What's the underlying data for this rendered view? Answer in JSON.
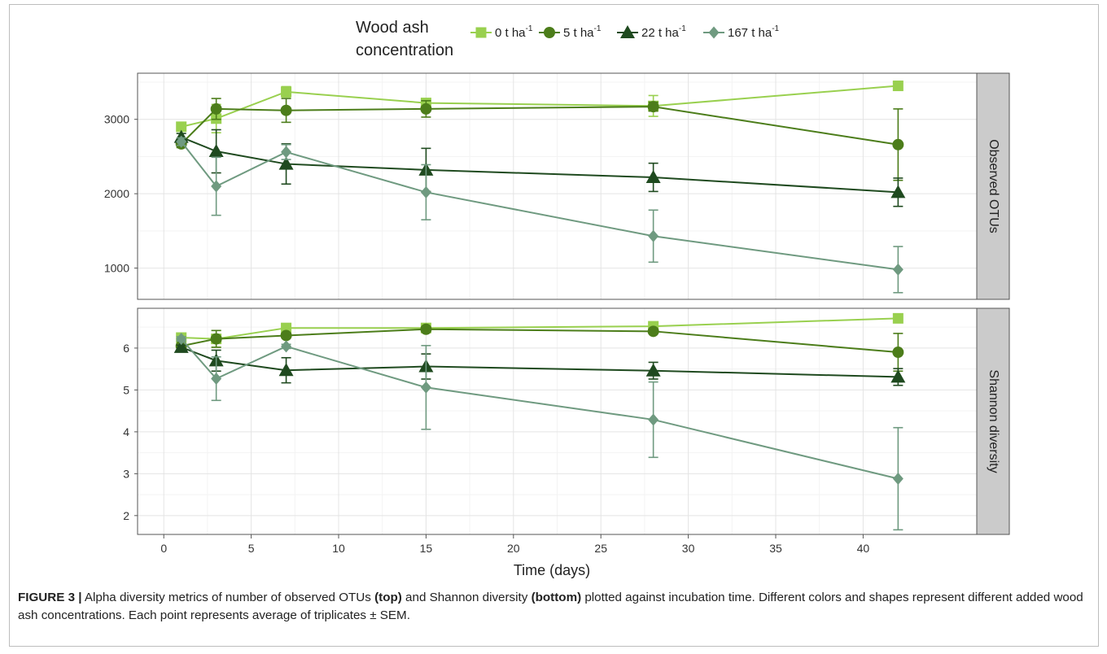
{
  "legend": {
    "title_line1": "Wood ash",
    "title_line2": "concentration",
    "unit_text": "t ha",
    "unit_sup": "-1"
  },
  "caption": {
    "label": "FIGURE 3 |",
    "text_1": " Alpha diversity metrics of number of observed OTUs ",
    "bold_1": "(top)",
    "text_2": " and Shannon diversity ",
    "bold_2": "(bottom)",
    "text_3": " plotted against incubation time. Different colors and shapes represent different added wood ash concentrations. Each point represents average of triplicates ± SEM."
  },
  "chart_data": {
    "type": "line",
    "xlabel": "Time (days)",
    "x": [
      1,
      3,
      7,
      15,
      28,
      42
    ],
    "xlim": [
      -1.5,
      46.5
    ],
    "xticks": [
      0,
      5,
      10,
      15,
      20,
      25,
      30,
      35,
      40
    ],
    "grid": true,
    "legend_position": "top",
    "series_styles": [
      {
        "name": "0 t ha-1",
        "label": "0",
        "color": "#99d04f",
        "shape": "square"
      },
      {
        "name": "5 t ha-1",
        "label": "5",
        "color": "#4c7d1a",
        "shape": "circle"
      },
      {
        "name": "22 t ha-1",
        "label": "22",
        "color": "#1f4a1f",
        "shape": "triangle"
      },
      {
        "name": "167 t ha-1",
        "label": "167",
        "color": "#6f9a80",
        "shape": "diamond"
      }
    ],
    "panels": [
      {
        "strip": "Observed OTUs",
        "ylim": [
          580,
          3620
        ],
        "yticks": [
          1000,
          2000,
          3000
        ],
        "series": [
          {
            "name": "0 t ha-1",
            "values": [
              2900,
              3010,
              3370,
              3220,
              3180,
              3450
            ],
            "err": [
              50,
              190,
              70,
              40,
              140,
              0
            ]
          },
          {
            "name": "5 t ha-1",
            "values": [
              2670,
              3140,
              3120,
              3140,
              3170,
              2660
            ],
            "err": [
              50,
              140,
              160,
              110,
              60,
              480
            ]
          },
          {
            "name": "22 t ha-1",
            "values": [
              2760,
              2570,
              2400,
              2320,
              2220,
              2020
            ],
            "err": [
              50,
              290,
              270,
              290,
              190,
              190
            ]
          },
          {
            "name": "167 t ha-1",
            "values": [
              2700,
              2100,
              2560,
              2020,
              1430,
              980
            ],
            "err": [
              50,
              390,
              100,
              370,
              350,
              310
            ]
          }
        ]
      },
      {
        "strip": "Shannon diversity",
        "ylim": [
          1.55,
          6.95
        ],
        "yticks": [
          2,
          3,
          4,
          5,
          6
        ],
        "series": [
          {
            "name": "0 t ha-1",
            "values": [
              6.25,
              6.22,
              6.48,
              6.48,
              6.52,
              6.71
            ],
            "err": [
              0.05,
              0.2,
              0.05,
              0.05,
              0.05,
              0.0
            ]
          },
          {
            "name": "5 t ha-1",
            "values": [
              6.05,
              6.22,
              6.3,
              6.45,
              6.4,
              5.9
            ],
            "err": [
              0.05,
              0.2,
              0.05,
              0.05,
              0.05,
              0.45
            ]
          },
          {
            "name": "22 t ha-1",
            "values": [
              6.02,
              5.7,
              5.47,
              5.56,
              5.46,
              5.31
            ],
            "err": [
              0.05,
              0.25,
              0.3,
              0.3,
              0.2,
              0.2
            ]
          },
          {
            "name": "167 t ha-1",
            "values": [
              6.22,
              5.27,
              6.04,
              5.06,
              4.29,
              2.88
            ],
            "err": [
              0.05,
              0.52,
              0.05,
              1.0,
              0.9,
              1.22
            ]
          }
        ]
      }
    ]
  }
}
